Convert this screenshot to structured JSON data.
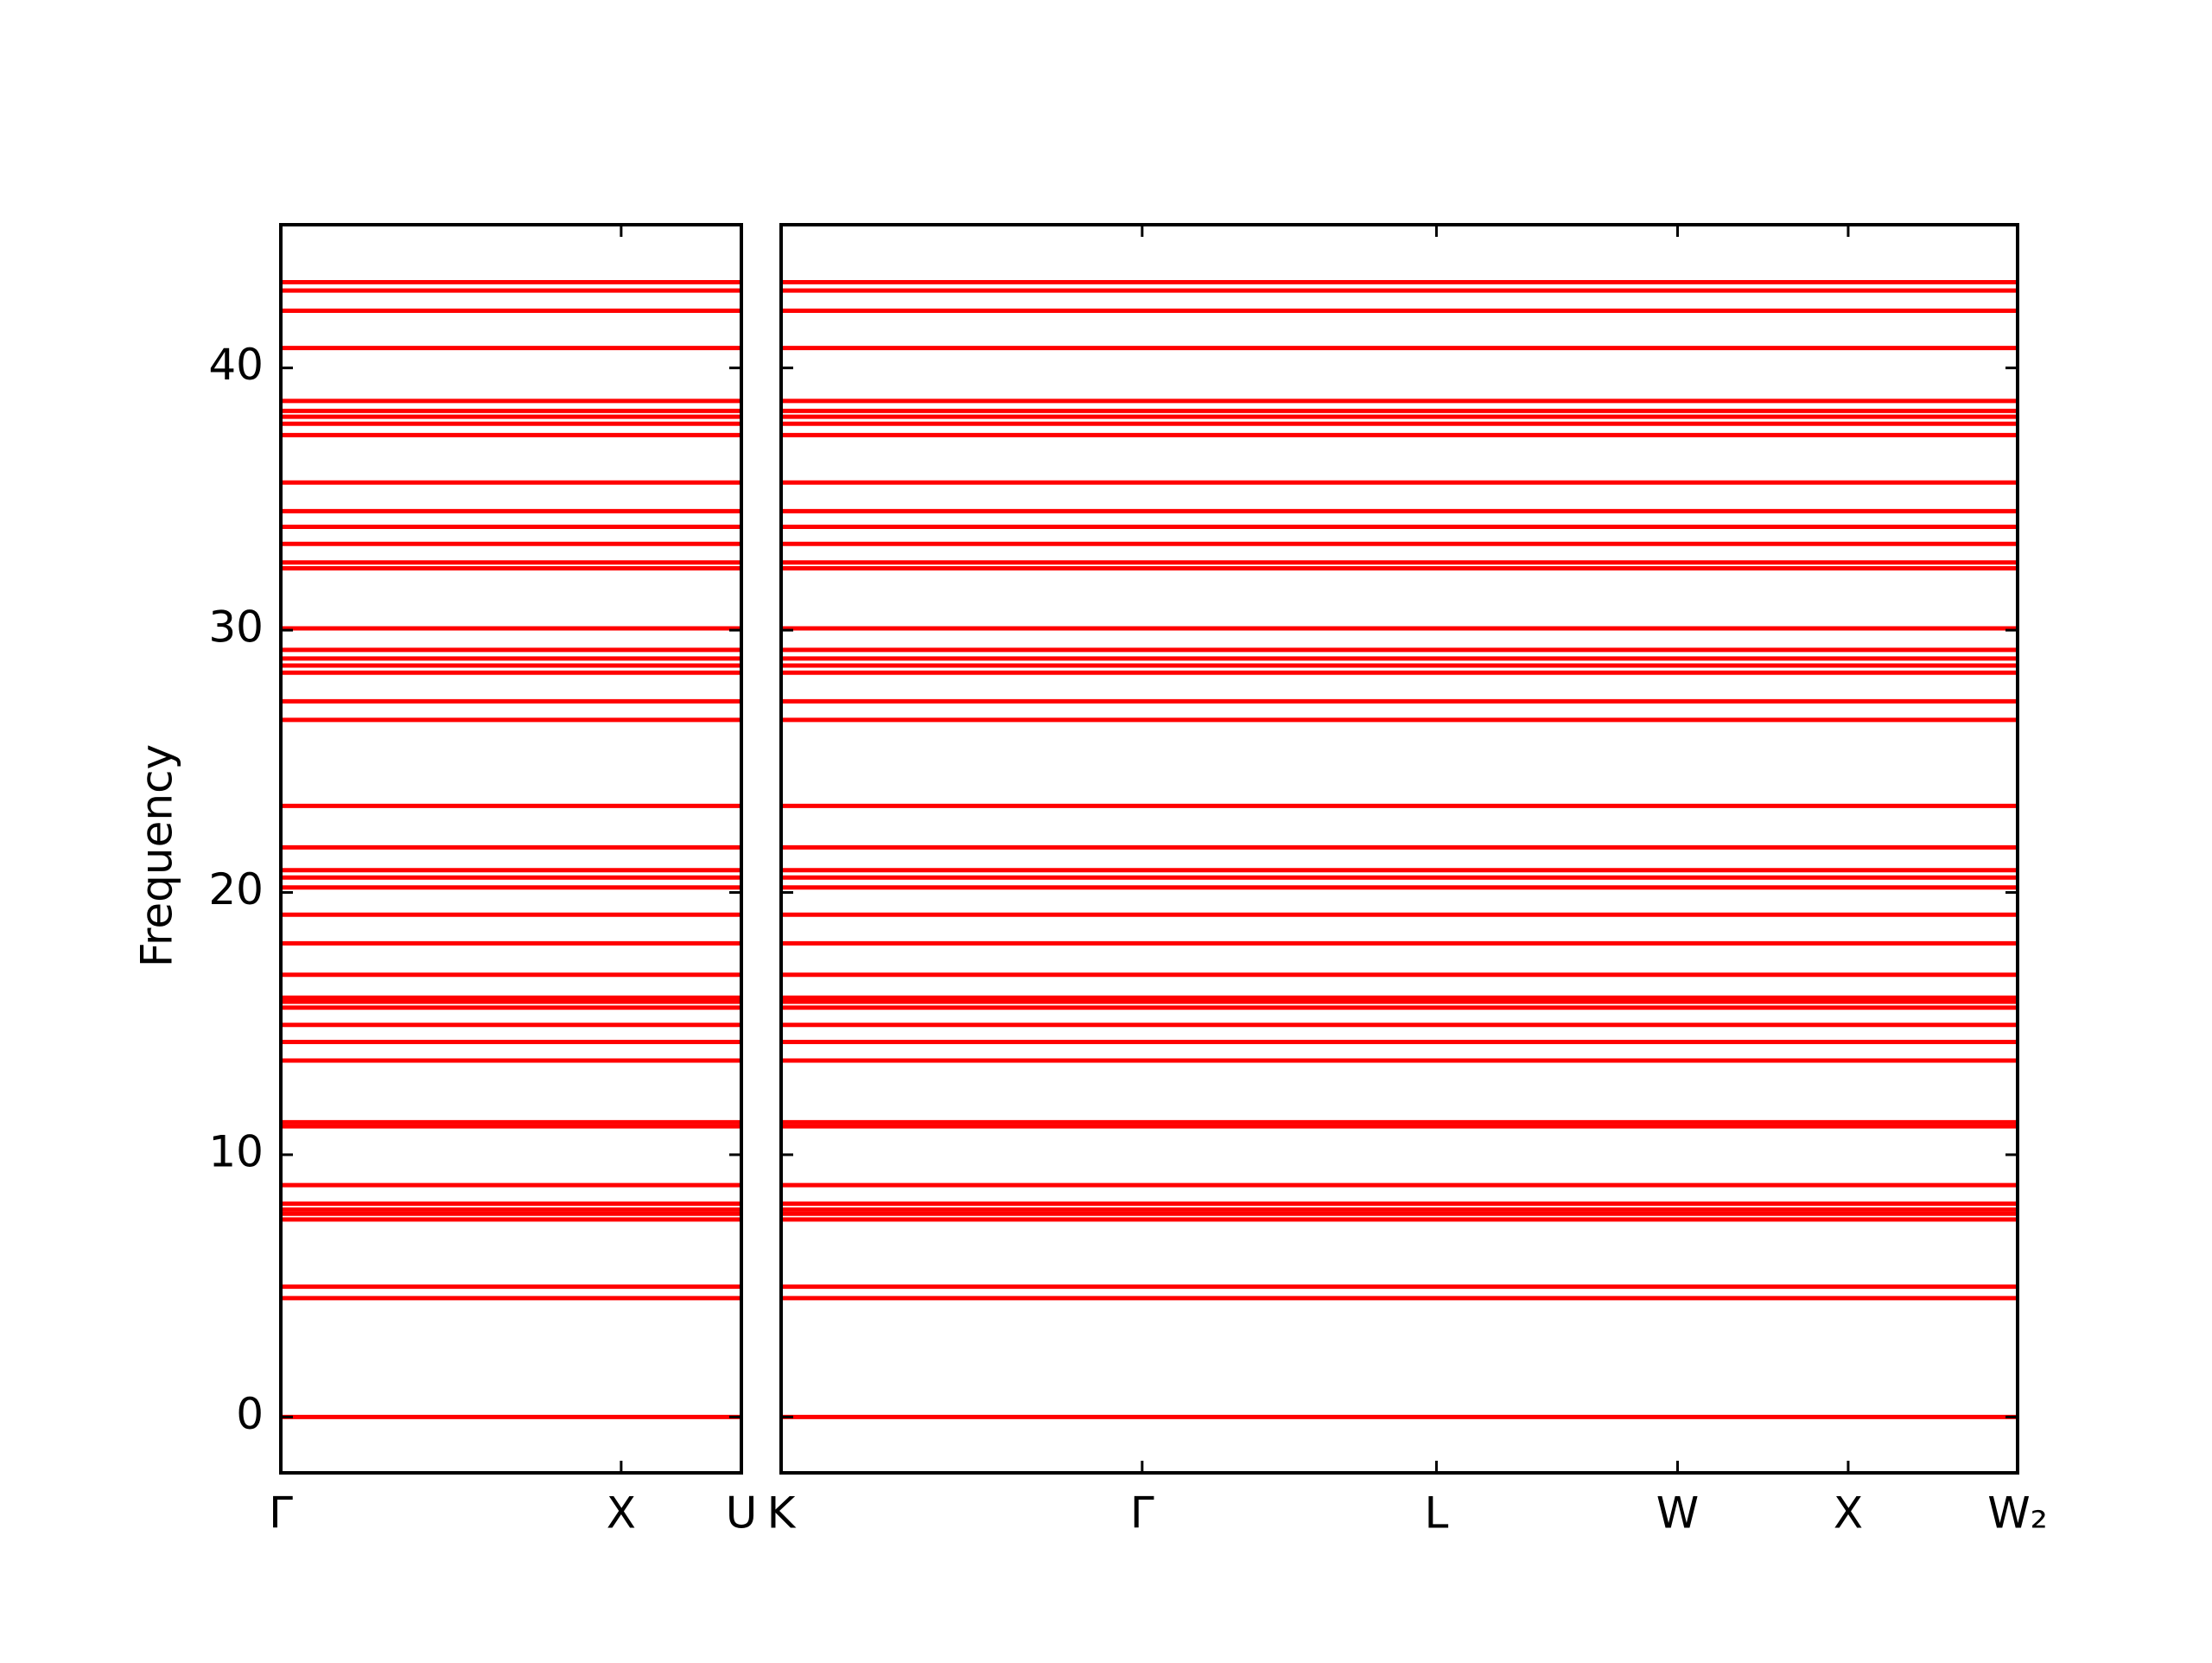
{
  "chart_data": {
    "type": "band",
    "ylabel": "Frequency",
    "color": "#ff0000",
    "ylim": [
      -2.13,
      45.46
    ],
    "yticks": [
      0,
      10,
      20,
      30,
      40
    ],
    "bands": [
      43.27,
      42.95,
      42.18,
      40.76,
      38.74,
      38.36,
      38.14,
      37.87,
      37.44,
      35.63,
      34.54,
      33.94,
      33.29,
      32.58,
      32.36,
      30.07,
      29.25,
      28.92,
      28.65,
      28.38,
      27.29,
      26.58,
      23.3,
      21.72,
      20.85,
      20.57,
      20.19,
      19.15,
      18.06,
      16.86,
      15.99,
      15.83,
      15.61,
      14.95,
      14.3,
      13.59,
      11.24,
      11.08,
      8.84,
      8.13,
      7.91,
      7.75,
      7.53,
      4.97,
      4.53,
      0
    ],
    "panels": [
      {
        "xlim": [
          0,
          1
        ],
        "xticks": [
          {
            "value": 0,
            "label": "Γ"
          },
          {
            "value": 0.739,
            "label": "X"
          },
          {
            "value": 1,
            "label": "U"
          }
        ]
      },
      {
        "xlim": [
          0,
          1
        ],
        "xticks": [
          {
            "value": 0,
            "label": "K"
          },
          {
            "value": 0.292,
            "label": "Γ"
          },
          {
            "value": 0.53,
            "label": "L"
          },
          {
            "value": 0.725,
            "label": "W"
          },
          {
            "value": 0.863,
            "label": "X"
          },
          {
            "value": 1,
            "label": "W₂"
          }
        ]
      }
    ]
  }
}
